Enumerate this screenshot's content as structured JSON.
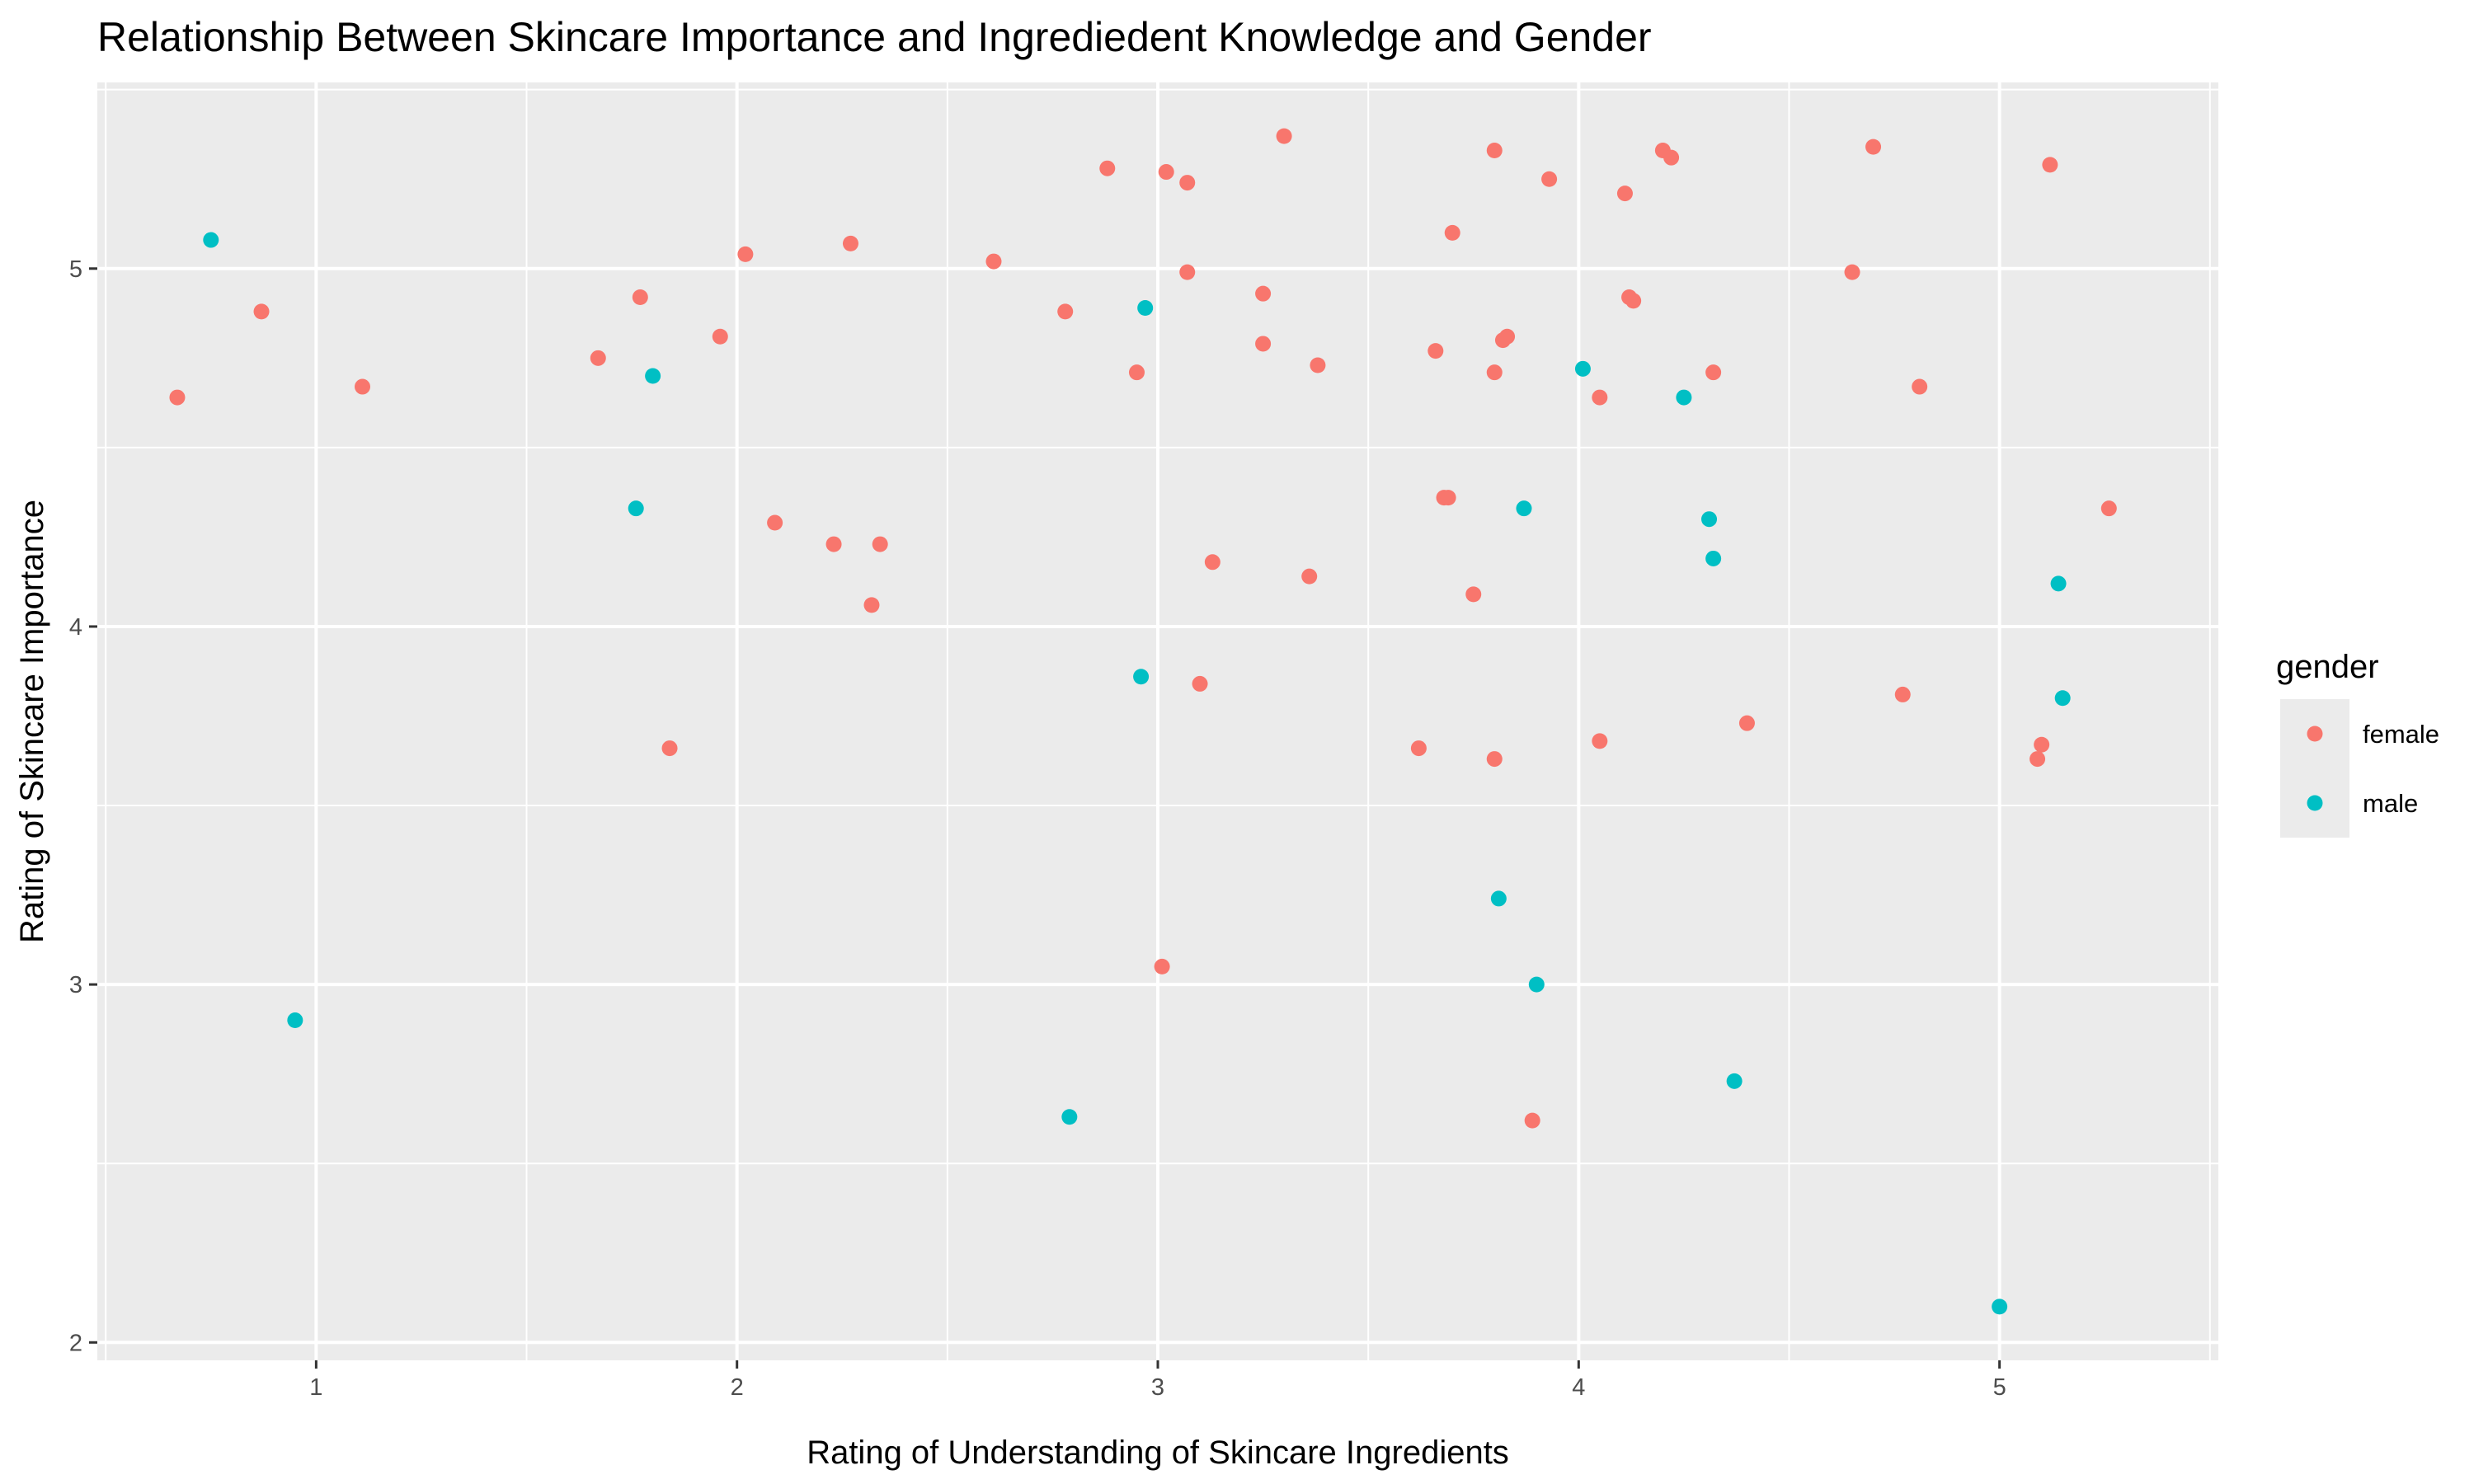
{
  "chart_data": {
    "type": "scatter",
    "title": "Relationship Between Skincare Importance and Ingrediedent Knowledge and Gender",
    "xlabel": "Rating of Understanding of Skincare Ingredients",
    "ylabel": "Rating of Skincare Importance",
    "xlim": [
      0.48,
      5.52
    ],
    "ylim": [
      1.95,
      5.52
    ],
    "x_ticks": [
      1,
      2,
      3,
      4,
      5
    ],
    "y_ticks": [
      2,
      3,
      4,
      5
    ],
    "grid": true,
    "legend": {
      "title": "gender",
      "position": "right"
    },
    "series": [
      {
        "name": "female",
        "color": "#F8766D",
        "points": [
          [
            0.67,
            4.64
          ],
          [
            0.87,
            4.88
          ],
          [
            1.11,
            4.67
          ],
          [
            1.67,
            4.75
          ],
          [
            1.77,
            4.92
          ],
          [
            1.84,
            3.66
          ],
          [
            1.96,
            4.81
          ],
          [
            2.02,
            5.04
          ],
          [
            2.09,
            4.29
          ],
          [
            2.23,
            4.23
          ],
          [
            2.27,
            5.07
          ],
          [
            2.32,
            4.06
          ],
          [
            2.34,
            4.23
          ],
          [
            2.61,
            5.02
          ],
          [
            2.78,
            4.88
          ],
          [
            2.88,
            5.28
          ],
          [
            2.95,
            4.71
          ],
          [
            3.01,
            3.05
          ],
          [
            3.02,
            5.27
          ],
          [
            3.07,
            5.24
          ],
          [
            3.07,
            4.99
          ],
          [
            3.1,
            3.84
          ],
          [
            3.13,
            4.18
          ],
          [
            3.25,
            4.93
          ],
          [
            3.25,
            4.79
          ],
          [
            3.3,
            5.37
          ],
          [
            3.36,
            4.14
          ],
          [
            3.38,
            4.73
          ],
          [
            3.62,
            3.66
          ],
          [
            3.66,
            4.77
          ],
          [
            3.68,
            4.36
          ],
          [
            3.69,
            4.36
          ],
          [
            3.7,
            5.1
          ],
          [
            3.75,
            4.09
          ],
          [
            3.8,
            5.33
          ],
          [
            3.8,
            4.71
          ],
          [
            3.8,
            3.63
          ],
          [
            3.82,
            4.8
          ],
          [
            3.83,
            4.81
          ],
          [
            3.89,
            2.62
          ],
          [
            3.93,
            5.25
          ],
          [
            4.05,
            4.64
          ],
          [
            4.05,
            3.68
          ],
          [
            4.11,
            5.21
          ],
          [
            4.12,
            4.92
          ],
          [
            4.13,
            4.91
          ],
          [
            4.2,
            5.33
          ],
          [
            4.22,
            5.31
          ],
          [
            4.32,
            4.71
          ],
          [
            4.4,
            3.73
          ],
          [
            4.65,
            4.99
          ],
          [
            4.7,
            5.34
          ],
          [
            4.77,
            3.81
          ],
          [
            4.81,
            4.67
          ],
          [
            5.09,
            3.63
          ],
          [
            5.1,
            3.67
          ],
          [
            5.12,
            5.29
          ],
          [
            5.26,
            4.33
          ]
        ]
      },
      {
        "name": "male",
        "color": "#00BFC4",
        "points": [
          [
            0.75,
            5.08
          ],
          [
            0.95,
            2.9
          ],
          [
            1.76,
            4.33
          ],
          [
            1.8,
            4.7
          ],
          [
            2.79,
            2.63
          ],
          [
            2.96,
            3.86
          ],
          [
            2.97,
            4.89
          ],
          [
            3.81,
            3.24
          ],
          [
            3.87,
            4.33
          ],
          [
            3.9,
            3.0
          ],
          [
            4.01,
            4.72
          ],
          [
            4.25,
            4.64
          ],
          [
            4.31,
            4.3
          ],
          [
            4.32,
            4.19
          ],
          [
            4.37,
            2.73
          ],
          [
            5.0,
            2.1
          ],
          [
            5.14,
            4.12
          ],
          [
            5.15,
            3.8
          ]
        ]
      }
    ]
  }
}
